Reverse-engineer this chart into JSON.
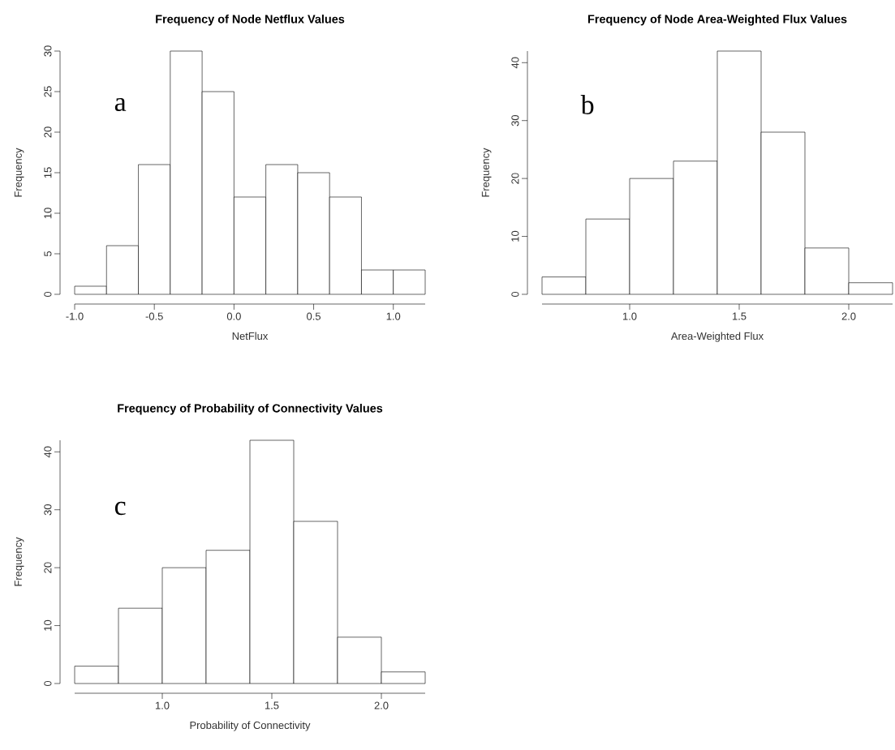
{
  "chart_data": [
    {
      "type": "histogram",
      "title": "Frequency of Node Netflux Values",
      "xlabel": "NetFlux",
      "ylabel": "Frequency",
      "bins": [
        -1.0,
        -0.8,
        -0.6,
        -0.4,
        -0.2,
        0.0,
        0.2,
        0.4,
        0.6,
        0.8,
        1.0,
        1.2
      ],
      "values": [
        1,
        6,
        16,
        30,
        25,
        12,
        16,
        15,
        12,
        3,
        3
      ],
      "xlim": [
        -1.0,
        1.2
      ],
      "ylim": [
        0,
        30
      ],
      "xticks": [
        {
          "value": -1.0,
          "label": "-1.0"
        },
        {
          "value": -0.5,
          "label": "-0.5"
        },
        {
          "value": 0.0,
          "label": "0.0"
        },
        {
          "value": 0.5,
          "label": "0.5"
        },
        {
          "value": 1.0,
          "label": "1.0"
        }
      ],
      "yticks": [
        0,
        5,
        10,
        15,
        20,
        25,
        30
      ],
      "annotations": [
        "a"
      ]
    },
    {
      "type": "histogram",
      "title": "Frequency of Node Area-Weighted Flux Values",
      "xlabel": "Area-Weighted Flux",
      "ylabel": "Frequency",
      "bins": [
        0.6,
        0.8,
        1.0,
        1.2,
        1.4,
        1.6,
        1.8,
        2.0,
        2.2
      ],
      "values": [
        3,
        13,
        20,
        23,
        42,
        28,
        8,
        2
      ],
      "xlim": [
        0.6,
        2.2
      ],
      "ylim": [
        0,
        42
      ],
      "xticks": [
        {
          "value": 1.0,
          "label": "1.0"
        },
        {
          "value": 1.5,
          "label": "1.5"
        },
        {
          "value": 2.0,
          "label": "2.0"
        }
      ],
      "yticks": [
        0,
        10,
        20,
        30,
        40
      ],
      "annotations": [
        "b"
      ]
    },
    {
      "type": "histogram",
      "title": "Frequency of Probability of Connectivity Values",
      "xlabel": "Probability of Connectivity",
      "ylabel": "Frequency",
      "bins": [
        0.6,
        0.8,
        1.0,
        1.2,
        1.4,
        1.6,
        1.8,
        2.0,
        2.2
      ],
      "values": [
        3,
        13,
        20,
        23,
        42,
        28,
        8,
        2
      ],
      "xlim": [
        0.6,
        2.2
      ],
      "ylim": [
        0,
        42
      ],
      "xticks": [
        {
          "value": 1.0,
          "label": "1.0"
        },
        {
          "value": 1.5,
          "label": "1.5"
        },
        {
          "value": 2.0,
          "label": "2.0"
        }
      ],
      "yticks": [
        0,
        10,
        20,
        30,
        40
      ],
      "annotations": [
        "c"
      ]
    }
  ]
}
